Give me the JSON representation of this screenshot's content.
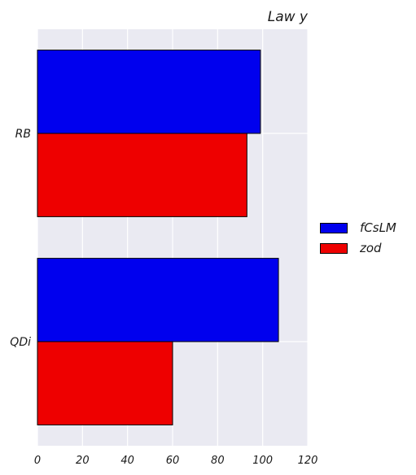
{
  "chart_data": {
    "type": "bar",
    "orientation": "horizontal",
    "title": "Law y",
    "xlabel": "",
    "ylabel": "",
    "categories": [
      "RB",
      "QDi"
    ],
    "series": [
      {
        "name": "fCsLM",
        "values": [
          99,
          107
        ],
        "color": "#0000ee"
      },
      {
        "name": "zod",
        "values": [
          93,
          60
        ],
        "color": "#ee0000"
      }
    ],
    "xlim": [
      0,
      120
    ],
    "xticks": [
      0,
      20,
      40,
      60,
      80,
      100,
      120
    ],
    "grid": true,
    "legend_position": "right"
  }
}
